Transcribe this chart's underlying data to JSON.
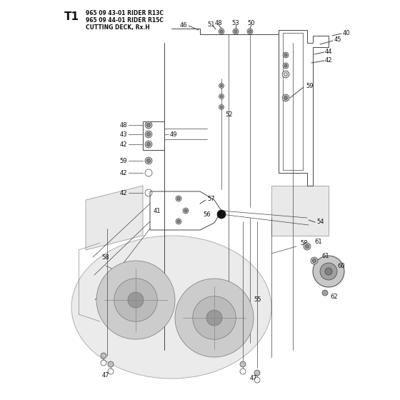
{
  "title_label": "T1",
  "title_line1": "965 09 43-01 RIDER R13C",
  "title_line2": "965 09 44-01 RIDER R15C",
  "title_line3": "CUTTING DECK, Rx.H",
  "bg_color": "#ffffff",
  "line_color": "#444444",
  "text_color": "#111111",
  "figsize": [
    5.6,
    5.6
  ],
  "dpi": 100
}
